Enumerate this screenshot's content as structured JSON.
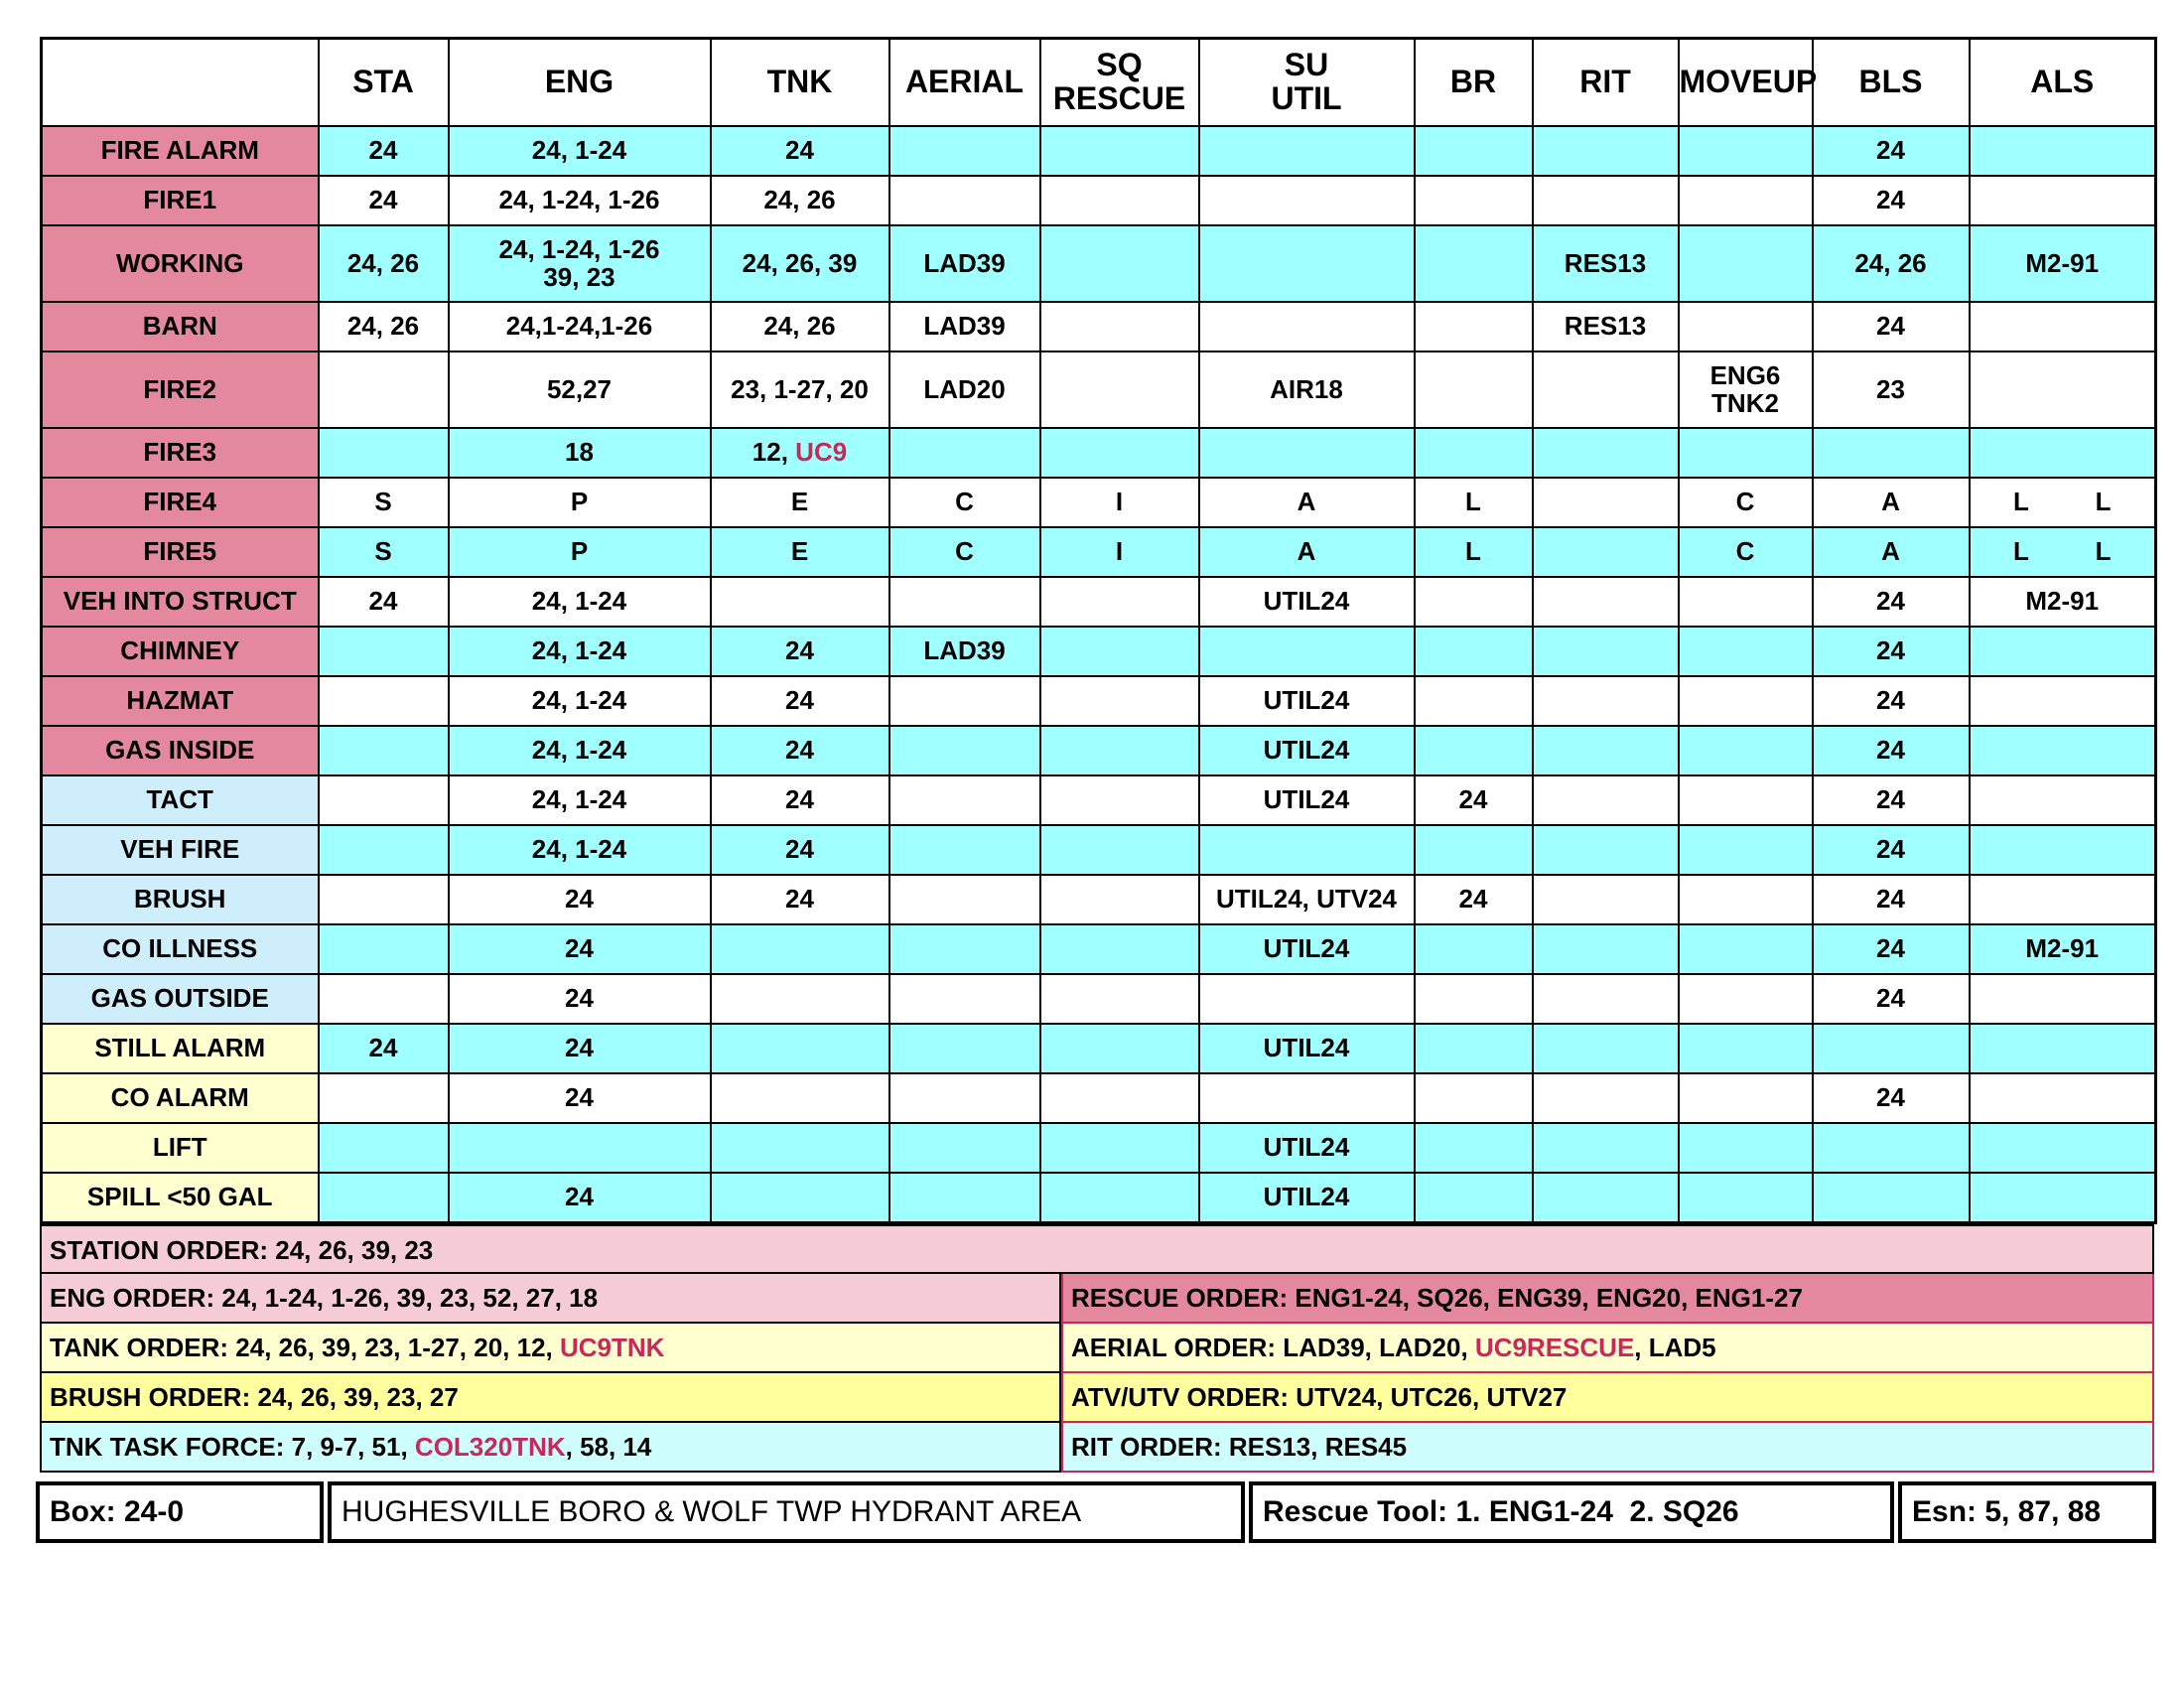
{
  "table": {
    "headers": [
      "STA",
      "ENG",
      "TNK",
      "AERIAL",
      "SQ\nRESCUE",
      "SU\nUTIL",
      "BR",
      "RIT",
      "MOVEUP",
      "BLS",
      "ALS"
    ],
    "rows": [
      {
        "label": "FIRE ALARM",
        "cells": [
          "24",
          "24, 1-24",
          "24",
          null,
          null,
          null,
          null,
          null,
          null,
          "24",
          null
        ]
      },
      {
        "label": "FIRE1",
        "cells": [
          "24",
          "24, 1-24, 1-26",
          "24, 26",
          null,
          null,
          null,
          null,
          null,
          null,
          "24",
          null
        ]
      },
      {
        "label": "WORKING",
        "cells": [
          "24, 26",
          "24, 1-24, 1-26\n39, 23",
          "24, 26, 39",
          "LAD39",
          null,
          null,
          null,
          "RES13",
          null,
          "24, 26",
          "M2-91"
        ]
      },
      {
        "label": "BARN",
        "cells": [
          "24, 26",
          "24,1-24,1-26",
          "24, 26",
          "LAD39",
          null,
          null,
          null,
          "RES13",
          null,
          "24",
          null
        ]
      },
      {
        "label": "FIRE2",
        "cells": [
          null,
          "52,27",
          "23, 1-27, 20",
          "LAD20",
          null,
          "AIR18",
          null,
          null,
          "ENG6\nTNK2",
          "23",
          null
        ]
      },
      {
        "label": "FIRE3",
        "cells": [
          null,
          "18",
          [
            "12, ",
            "UC9"
          ],
          null,
          null,
          null,
          null,
          null,
          null,
          null,
          null
        ]
      },
      {
        "label": "FIRE4",
        "cells": [
          "S",
          "P",
          "E",
          "C",
          "I",
          "A",
          "L",
          null,
          "C",
          "A",
          "L L"
        ]
      },
      {
        "label": "FIRE5",
        "cells": [
          "S",
          "P",
          "E",
          "C",
          "I",
          "A",
          "L",
          null,
          "C",
          "A",
          "L L"
        ]
      },
      {
        "label": "VEH INTO STRUCT",
        "cells": [
          "24",
          "24, 1-24",
          null,
          null,
          null,
          "UTIL24",
          null,
          null,
          null,
          "24",
          "M2-91"
        ]
      },
      {
        "label": "CHIMNEY",
        "cells": [
          null,
          "24, 1-24",
          "24",
          "LAD39",
          null,
          null,
          null,
          null,
          null,
          "24",
          null
        ]
      },
      {
        "label": "HAZMAT",
        "cells": [
          null,
          "24, 1-24",
          "24",
          null,
          null,
          "UTIL24",
          null,
          null,
          null,
          "24",
          null
        ]
      },
      {
        "label": "GAS INSIDE",
        "cells": [
          null,
          "24, 1-24",
          "24",
          null,
          null,
          "UTIL24",
          null,
          null,
          null,
          "24",
          null
        ]
      },
      {
        "label": "TACT",
        "cells": [
          null,
          "24, 1-24",
          "24",
          null,
          null,
          "UTIL24",
          "24",
          null,
          null,
          "24",
          null
        ]
      },
      {
        "label": "VEH FIRE",
        "cells": [
          null,
          "24, 1-24",
          "24",
          null,
          null,
          null,
          null,
          null,
          null,
          "24",
          null
        ]
      },
      {
        "label": "BRUSH",
        "cells": [
          null,
          "24",
          "24",
          null,
          null,
          "UTIL24, UTV24",
          "24",
          null,
          null,
          "24",
          null
        ]
      },
      {
        "label": "CO ILLNESS",
        "cells": [
          null,
          "24",
          null,
          null,
          null,
          "UTIL24",
          null,
          null,
          null,
          "24",
          "M2-91"
        ]
      },
      {
        "label": "GAS OUTSIDE",
        "cells": [
          null,
          "24",
          null,
          null,
          null,
          null,
          null,
          null,
          null,
          "24",
          null
        ]
      },
      {
        "label": "STILL ALARM",
        "cells": [
          "24",
          "24",
          null,
          null,
          null,
          "UTIL24",
          null,
          null,
          null,
          null,
          null
        ]
      },
      {
        "label": "CO ALARM",
        "cells": [
          null,
          "24",
          null,
          null,
          null,
          null,
          null,
          null,
          null,
          "24",
          null
        ]
      },
      {
        "label": "LIFT",
        "cells": [
          null,
          null,
          null,
          null,
          null,
          "UTIL24",
          null,
          null,
          null,
          null,
          null
        ]
      },
      {
        "label": "SPILL <50 GAL",
        "cells": [
          null,
          "24",
          null,
          null,
          null,
          "UTIL24",
          null,
          null,
          null,
          null,
          null
        ]
      }
    ]
  },
  "orders": {
    "station": [
      "STATION ORDER: 24, 26, 39, 23"
    ],
    "left": [
      [
        "ENG ORDER: 24, 1-24, 1-26, 39, 23, 52, 27, 18"
      ],
      [
        "TANK ORDER: 24, 26, 39, 23, 1-27, 20, 12, ",
        "UC9TNK"
      ],
      [
        "BRUSH ORDER: 24, 26, 39, 23, 27"
      ],
      [
        "TNK TASK FORCE: 7, 9-7, 51, ",
        "COL320TNK",
        ", 58, 14"
      ]
    ],
    "right": [
      [
        "RESCUE ORDER: ENG1-24, SQ26, ENG39, ENG20, ENG1-27"
      ],
      [
        "AERIAL ORDER: LAD39, LAD20, ",
        "UC9RESCUE",
        ", LAD5"
      ],
      [
        "ATV/UTV ORDER: UTV24, UTC26, UTV27"
      ],
      [
        "RIT ORDER: RES13, RES45"
      ]
    ]
  },
  "footer": {
    "box": "Box: 24-0",
    "area": "HUGHESVILLE BORO & WOLF TWP HYDRANT AREA",
    "rescue_tool": "Rescue Tool: 1. ENG1-24  2. SQ26",
    "esn": "Esn: 5, 87, 88"
  }
}
